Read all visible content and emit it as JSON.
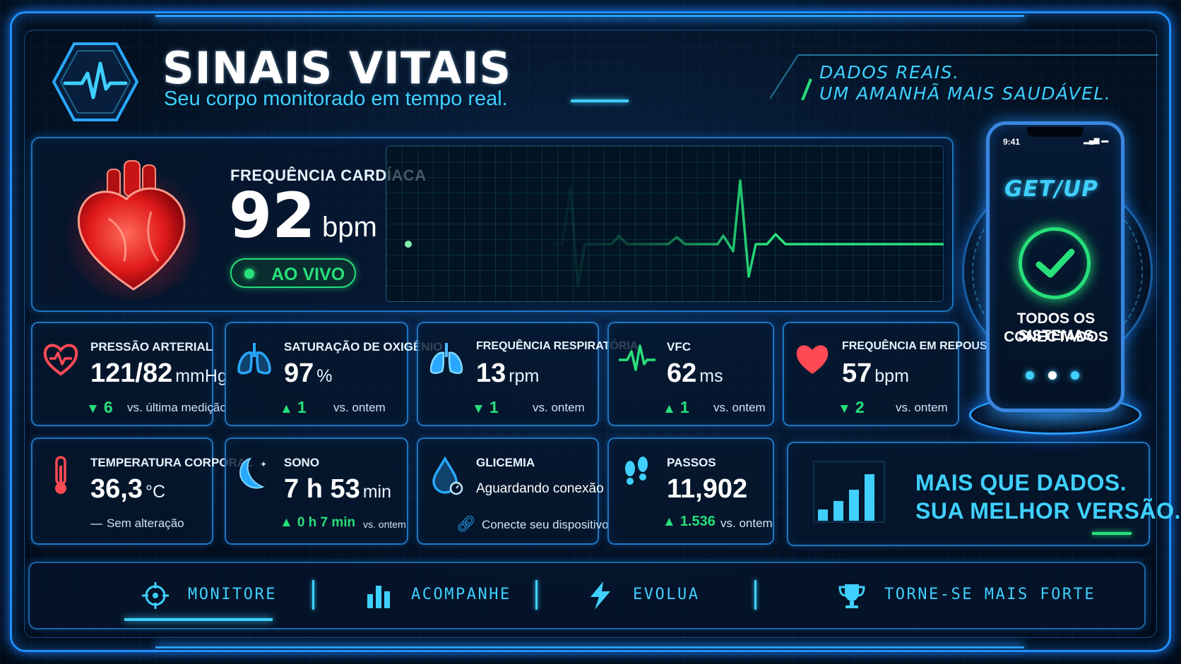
{
  "header": {
    "title": "SINAIS VITAIS",
    "subtitle": "Seu corpo monitorado em tempo real.",
    "tagline_line1": "DADOS REAIS.",
    "tagline_line2": "UM AMANHÃ MAIS SAUDÁVEL.",
    "logo_icon": "heartbeat-hexagon-icon"
  },
  "heart_rate": {
    "label": "FREQUÊNCIA CARDÍACA",
    "value": "92",
    "unit": "bpm",
    "live_label": "AO VIVO",
    "icon": "heart-icon",
    "ecg_color": "#27e07a"
  },
  "metrics": [
    {
      "label": "PRESSÃO ARTERIAL",
      "value": "121/82",
      "unit": "mmHg",
      "delta": "6",
      "direction": "down",
      "comparison": "vs. última medição",
      "icon": "heart-monitor-icon",
      "color": "#ff4a55"
    },
    {
      "label": "SATURAÇÃO DE OXIGÊNIO",
      "value": "97",
      "unit": "%",
      "delta": "1",
      "direction": "up",
      "comparison": "vs. ontem",
      "icon": "lungs-icon",
      "color": "#2aa8ff"
    },
    {
      "label": "FREQUÊNCIA RESPIRATÓRIA",
      "value": "13",
      "unit": "rpm",
      "delta": "1",
      "direction": "down",
      "comparison": "vs. ontem",
      "icon": "lungs-icon",
      "color": "#2aa8ff"
    },
    {
      "label": "VFC",
      "value": "62",
      "unit": "ms",
      "delta": "1",
      "direction": "up",
      "comparison": "vs. ontem",
      "icon": "pulse-icon",
      "color": "#27e07a"
    },
    {
      "label": "FREQUÊNCIA EM REPOUSO",
      "value": "57",
      "unit": "bpm",
      "delta": "2",
      "direction": "down",
      "comparison": "vs. ontem",
      "icon": "heart-icon",
      "color": "#ff4a55"
    },
    {
      "label": "TEMPERATURA CORPORAL",
      "value": "36,3",
      "unit": "°C",
      "delta": "",
      "direction": "none",
      "comparison": "Sem alteração",
      "icon": "thermometer-icon",
      "color": "#ff4a55"
    },
    {
      "label": "SONO",
      "value": "7 h 53",
      "unit": "min",
      "delta": "0 h 7 min",
      "direction": "up",
      "comparison": "vs. ontem",
      "icon": "moon-icon",
      "color": "#2aa8ff"
    },
    {
      "label": "GLICEMIA",
      "value": "Aguardando conexão",
      "unit": "",
      "delta": "",
      "direction": "none",
      "comparison": "Conecte seu dispositivo",
      "icon": "blood-drop-icon",
      "color": "#2aa8ff"
    },
    {
      "label": "PASSOS",
      "value": "11,902",
      "unit": "",
      "delta": "1.536",
      "direction": "up",
      "comparison": "vs. ontem",
      "icon": "footprints-icon",
      "color": "#3fd0ff"
    }
  ],
  "promo": {
    "line1": "MAIS QUE DADOS.",
    "line2": "SUA MELHOR VERSÃO.",
    "icon": "bar-chart-icon"
  },
  "phone": {
    "time": "9:41",
    "brand": "GET/UP",
    "status": "TODOS OS SISTEMAS",
    "status_line2": "CONECTADOS",
    "icon": "check-circle-icon"
  },
  "nav": [
    {
      "label": "MONITORE",
      "icon": "target-icon",
      "active": true
    },
    {
      "label": "ACOMPANHE",
      "icon": "bar-chart-icon",
      "active": false
    },
    {
      "label": "EVOLUA",
      "icon": "lightning-icon",
      "active": false
    },
    {
      "label": "TORNE-SE MAIS FORTE",
      "icon": "trophy-icon",
      "active": false
    }
  ],
  "colors": {
    "accent": "#3fd0ff",
    "frame": "#1e8fff",
    "positive": "#27e07a",
    "alert": "#ff4a55"
  }
}
